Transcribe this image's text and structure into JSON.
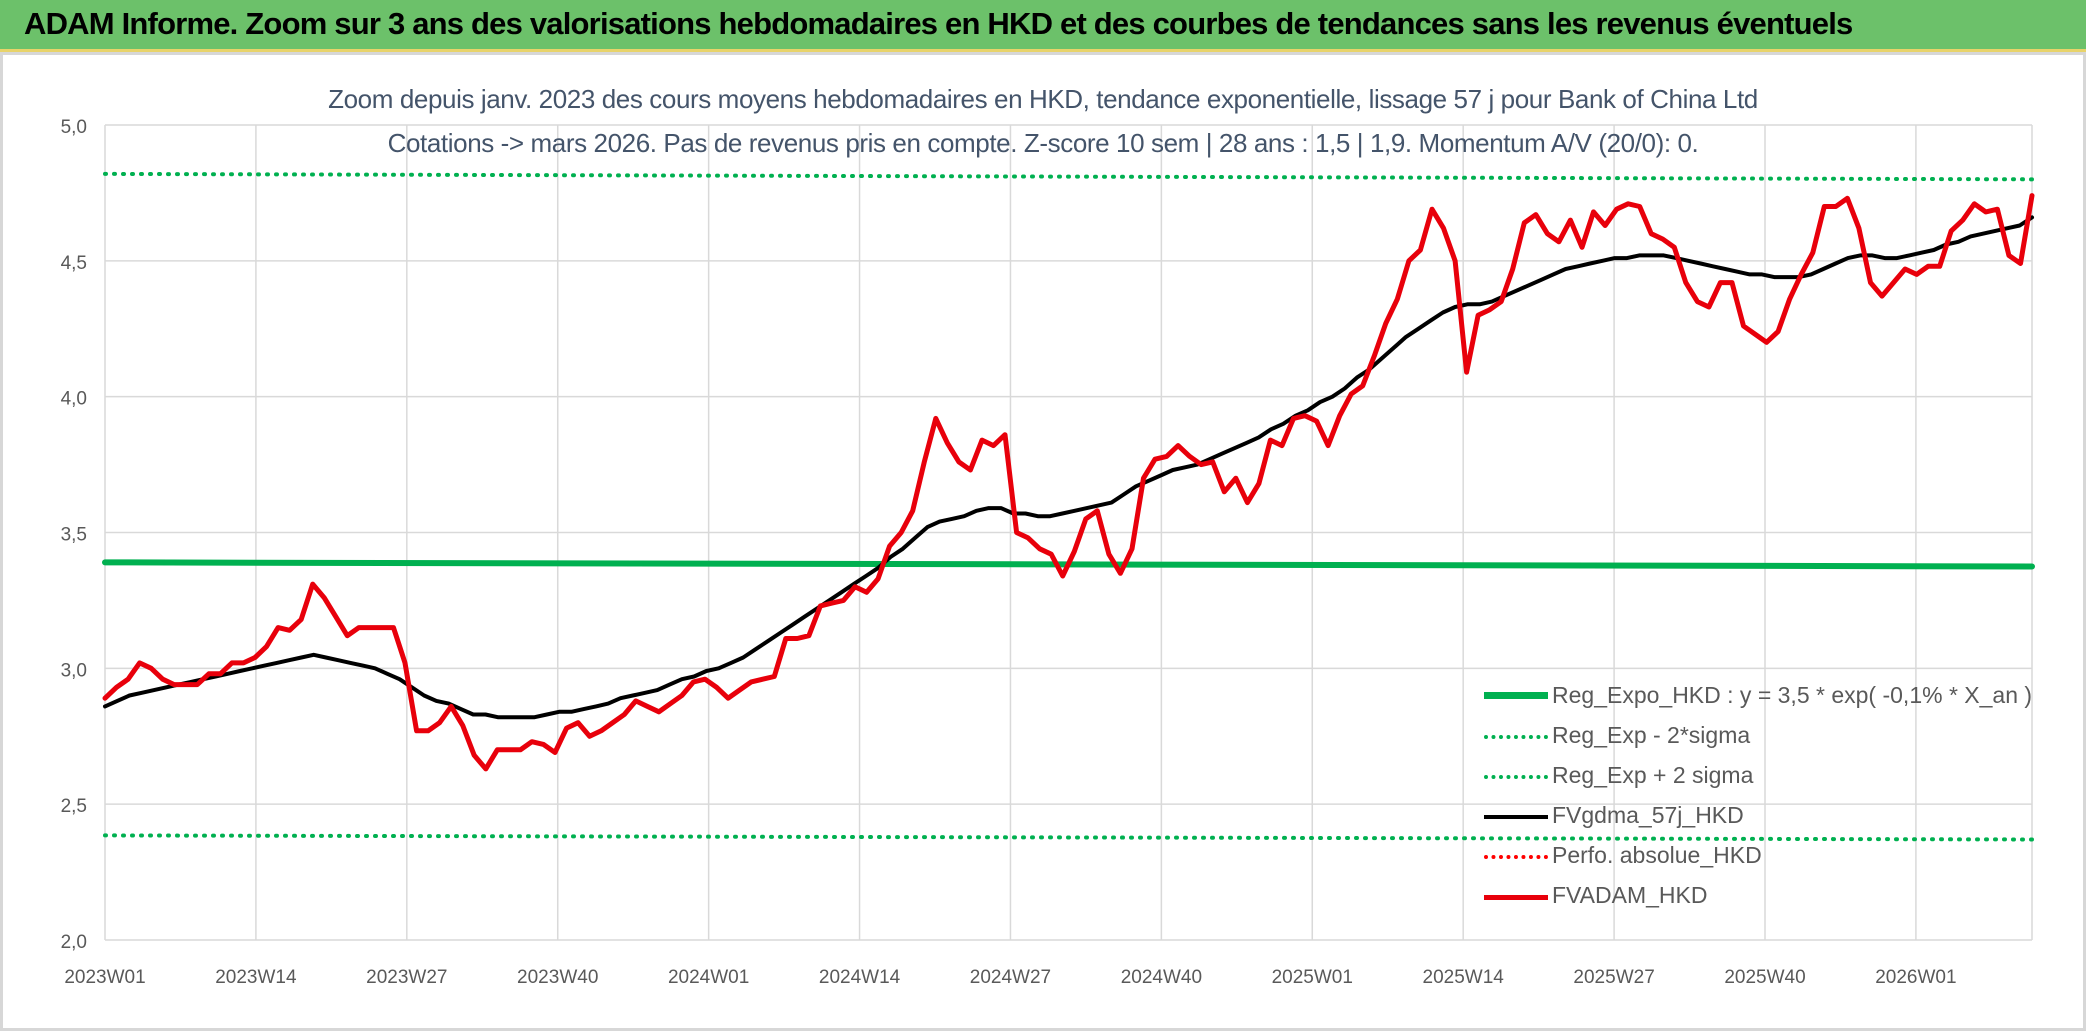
{
  "banner": {
    "title": "ADAM Informe. Zoom sur 3 ans des valorisations hebdomadaires en HKD et des courbes de tendances sans les revenus éventuels"
  },
  "chart_data": {
    "type": "line",
    "title_line1": "Zoom depuis janv. 2023 des cours moyens hebdomadaires en HKD, tendance exponentielle, lissage 57 j pour Bank of China Ltd",
    "title_line2": "Cotations -> mars 2026. Pas de revenus pris en compte. Z-score 10 sem | 28 ans : 1,5 | 1,9. Momentum A/V (20/0): 0.",
    "ylim": [
      2.0,
      5.0
    ],
    "yticks": [
      "2,0",
      "2,5",
      "3,0",
      "3,5",
      "4,0",
      "4,5",
      "5,0"
    ],
    "ytick_values": [
      2.0,
      2.5,
      3.0,
      3.5,
      4.0,
      4.5,
      5.0
    ],
    "xticks": [
      "2023W01",
      "2023W14",
      "2023W27",
      "2023W40",
      "2024W01",
      "2024W14",
      "2024W27",
      "2024W40",
      "2025W01",
      "2025W14",
      "2025W27",
      "2025W40",
      "2026W01"
    ],
    "x_first": "2023W01",
    "x_last": "2026W11",
    "grid": true,
    "legend_position": "bottom-right",
    "series": [
      {
        "name": "Reg_Expo_HKD : y = 3,5 * exp( -0,1% *  X_an )",
        "color": "#00b050",
        "style": "solid",
        "start": 3.39,
        "end": 3.375
      },
      {
        "name": "Reg_Exp - 2*sigma",
        "color": "#00b050",
        "style": "dotted",
        "start": 2.385,
        "end": 2.37
      },
      {
        "name": "Reg_Exp + 2 sigma",
        "color": "#00b050",
        "style": "dotted",
        "start": 4.82,
        "end": 4.8
      },
      {
        "name": "FVgdma_57j_HKD",
        "color": "#000000",
        "style": "solid",
        "values": [
          2.86,
          2.88,
          2.9,
          2.91,
          2.92,
          2.93,
          2.94,
          2.95,
          2.96,
          2.97,
          2.98,
          2.99,
          3.0,
          3.01,
          3.02,
          3.03,
          3.04,
          3.05,
          3.04,
          3.03,
          3.02,
          3.01,
          3.0,
          2.98,
          2.96,
          2.93,
          2.9,
          2.88,
          2.87,
          2.85,
          2.83,
          2.83,
          2.82,
          2.82,
          2.82,
          2.82,
          2.83,
          2.84,
          2.84,
          2.85,
          2.86,
          2.87,
          2.89,
          2.9,
          2.91,
          2.92,
          2.94,
          2.96,
          2.97,
          2.99,
          3.0,
          3.02,
          3.04,
          3.07,
          3.1,
          3.13,
          3.16,
          3.19,
          3.22,
          3.25,
          3.28,
          3.31,
          3.34,
          3.37,
          3.41,
          3.44,
          3.48,
          3.52,
          3.54,
          3.55,
          3.56,
          3.58,
          3.59,
          3.59,
          3.57,
          3.57,
          3.56,
          3.56,
          3.57,
          3.58,
          3.59,
          3.6,
          3.61,
          3.64,
          3.67,
          3.69,
          3.71,
          3.73,
          3.74,
          3.75,
          3.77,
          3.79,
          3.81,
          3.83,
          3.85,
          3.88,
          3.9,
          3.93,
          3.95,
          3.98,
          4.0,
          4.03,
          4.07,
          4.1,
          4.14,
          4.18,
          4.22,
          4.25,
          4.28,
          4.31,
          4.33,
          4.34,
          4.34,
          4.35,
          4.37,
          4.39,
          4.41,
          4.43,
          4.45,
          4.47,
          4.48,
          4.49,
          4.5,
          4.51,
          4.51,
          4.52,
          4.52,
          4.52,
          4.51,
          4.5,
          4.49,
          4.48,
          4.47,
          4.46,
          4.45,
          4.45,
          4.44,
          4.44,
          4.44,
          4.45,
          4.47,
          4.49,
          4.51,
          4.52,
          4.52,
          4.51,
          4.51,
          4.52,
          4.53,
          4.54,
          4.56,
          4.57,
          4.59,
          4.6,
          4.61,
          4.62,
          4.63,
          4.66
        ]
      },
      {
        "name": "Perfo. absolue_HKD",
        "color": "#ff0000",
        "style": "dotted",
        "values": []
      },
      {
        "name": "FVADAM_HKD",
        "color": "#e8000b",
        "style": "solid",
        "values": [
          2.89,
          2.93,
          2.96,
          3.02,
          3.0,
          2.96,
          2.94,
          2.94,
          2.94,
          2.98,
          2.98,
          3.02,
          3.02,
          3.04,
          3.08,
          3.15,
          3.14,
          3.18,
          3.31,
          3.26,
          3.19,
          3.12,
          3.15,
          3.15,
          3.15,
          3.15,
          3.02,
          2.77,
          2.77,
          2.8,
          2.86,
          2.79,
          2.68,
          2.63,
          2.7,
          2.7,
          2.7,
          2.73,
          2.72,
          2.69,
          2.78,
          2.8,
          2.75,
          2.77,
          2.8,
          2.83,
          2.88,
          2.86,
          2.84,
          2.87,
          2.9,
          2.95,
          2.96,
          2.93,
          2.89,
          2.92,
          2.95,
          2.96,
          2.97,
          3.11,
          3.11,
          3.12,
          3.23,
          3.24,
          3.25,
          3.3,
          3.28,
          3.33,
          3.45,
          3.5,
          3.58,
          3.76,
          3.92,
          3.83,
          3.76,
          3.73,
          3.84,
          3.82,
          3.86,
          3.5,
          3.48,
          3.44,
          3.42,
          3.34,
          3.43,
          3.55,
          3.58,
          3.42,
          3.35,
          3.44,
          3.7,
          3.77,
          3.78,
          3.82,
          3.78,
          3.75,
          3.76,
          3.65,
          3.7,
          3.61,
          3.68,
          3.84,
          3.82,
          3.92,
          3.93,
          3.91,
          3.82,
          3.93,
          4.01,
          4.04,
          4.15,
          4.27,
          4.36,
          4.5,
          4.54,
          4.69,
          4.62,
          4.5,
          4.09,
          4.3,
          4.32,
          4.35,
          4.47,
          4.64,
          4.67,
          4.6,
          4.57,
          4.65,
          4.55,
          4.68,
          4.63,
          4.69,
          4.71,
          4.7,
          4.6,
          4.58,
          4.55,
          4.42,
          4.35,
          4.33,
          4.42,
          4.42,
          4.26,
          4.23,
          4.2,
          4.24,
          4.36,
          4.45,
          4.53,
          4.7,
          4.7,
          4.73,
          4.62,
          4.42,
          4.37,
          4.42,
          4.47,
          4.45,
          4.48,
          4.48,
          4.61,
          4.65,
          4.71,
          4.68,
          4.69,
          4.52,
          4.49,
          4.74
        ]
      }
    ]
  }
}
